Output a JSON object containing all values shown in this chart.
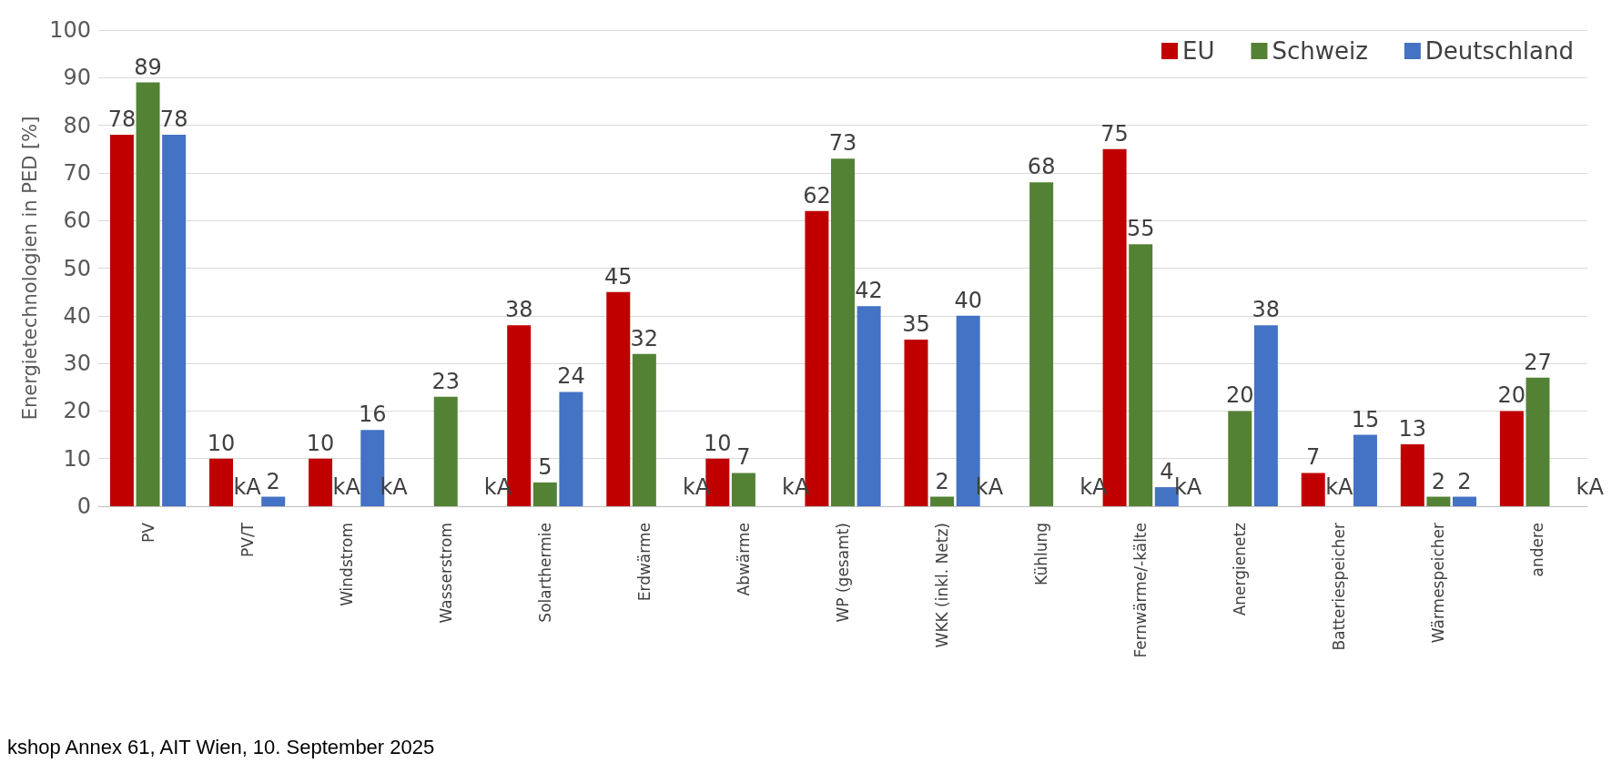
{
  "chart_data": {
    "type": "bar",
    "ylabel": "Energietechnologien in PED [%]",
    "categories": [
      "PV",
      "PV/T",
      "Windstrom",
      "Wasserstrom",
      "Solarthermie",
      "Erdwärme",
      "Abwärme",
      "WP (gesamt)",
      "WKK (inkl. Netz)",
      "Kühlung",
      "Fernwärme/-kälte",
      "Anergienetz",
      "Batteriespeicher",
      "Wärmespeicher",
      "andere"
    ],
    "series": [
      {
        "name": "EU",
        "color": "#c00000",
        "values": [
          78,
          10,
          10,
          null,
          38,
          45,
          10,
          62,
          35,
          null,
          75,
          null,
          7,
          13,
          20
        ],
        "value_labels": [
          "78",
          "10",
          "10",
          "kA",
          "38",
          "45",
          "10",
          "62",
          "35",
          "kA",
          "75",
          "kA",
          "7",
          "13",
          "20"
        ]
      },
      {
        "name": "Schweiz",
        "color": "#548235",
        "values": [
          89,
          null,
          null,
          23,
          5,
          32,
          7,
          73,
          2,
          68,
          55,
          20,
          null,
          2,
          27
        ],
        "value_labels": [
          "89",
          "kA",
          "kA",
          "23",
          "5",
          "32",
          "7",
          "73",
          "2",
          "68",
          "55",
          "20",
          "kA",
          "2",
          "27"
        ]
      },
      {
        "name": "Deutschland",
        "color": "#4472c4",
        "values": [
          78,
          2,
          16,
          null,
          24,
          null,
          null,
          42,
          40,
          null,
          4,
          38,
          15,
          2,
          null
        ],
        "value_labels": [
          "78",
          "2",
          "16",
          "kA",
          "24",
          "kA",
          "kA",
          "42",
          "40",
          "kA",
          "4",
          "38",
          "15",
          "2",
          "kA"
        ]
      }
    ],
    "ylim": [
      0,
      100
    ],
    "yticks": [
      0,
      10,
      20,
      30,
      40,
      50,
      60,
      70,
      80,
      90,
      100
    ],
    "grid": "y",
    "legend": "top right",
    "annotations": [
      "kshop Annex 61, AIT Wien, 10. September 2025"
    ]
  }
}
